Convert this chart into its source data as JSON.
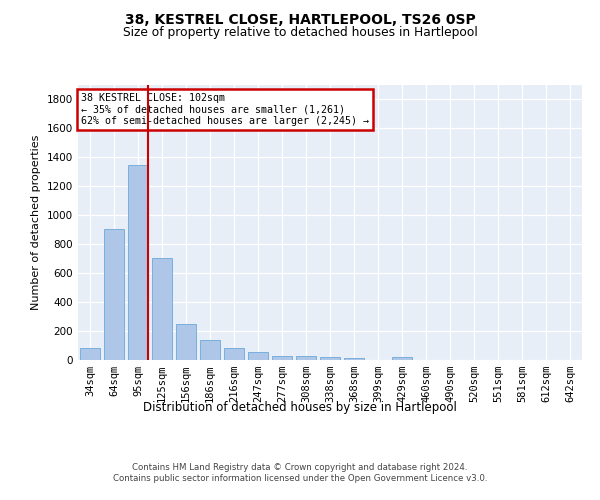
{
  "title1": "38, KESTREL CLOSE, HARTLEPOOL, TS26 0SP",
  "title2": "Size of property relative to detached houses in Hartlepool",
  "xlabel": "Distribution of detached houses by size in Hartlepool",
  "ylabel": "Number of detached properties",
  "categories": [
    "34sqm",
    "64sqm",
    "95sqm",
    "125sqm",
    "156sqm",
    "186sqm",
    "216sqm",
    "247sqm",
    "277sqm",
    "308sqm",
    "338sqm",
    "368sqm",
    "399sqm",
    "429sqm",
    "460sqm",
    "490sqm",
    "520sqm",
    "551sqm",
    "581sqm",
    "612sqm",
    "642sqm"
  ],
  "values": [
    80,
    905,
    1345,
    705,
    248,
    140,
    80,
    52,
    28,
    25,
    18,
    12,
    0,
    22,
    0,
    0,
    0,
    0,
    0,
    0,
    0
  ],
  "bar_color": "#aec6e8",
  "bar_edge_color": "#5a9fd4",
  "redline_index": 2,
  "annotation_line1": "38 KESTREL CLOSE: 102sqm",
  "annotation_line2": "← 35% of detached houses are smaller (1,261)",
  "annotation_line3": "62% of semi-detached houses are larger (2,245) →",
  "annotation_box_edge": "#cc0000",
  "redline_color": "#cc0000",
  "ylim": [
    0,
    1900
  ],
  "yticks": [
    0,
    200,
    400,
    600,
    800,
    1000,
    1200,
    1400,
    1600,
    1800
  ],
  "background_color": "#e8eef7",
  "grid_color": "#ffffff",
  "footer1": "Contains HM Land Registry data © Crown copyright and database right 2024.",
  "footer2": "Contains public sector information licensed under the Open Government Licence v3.0."
}
